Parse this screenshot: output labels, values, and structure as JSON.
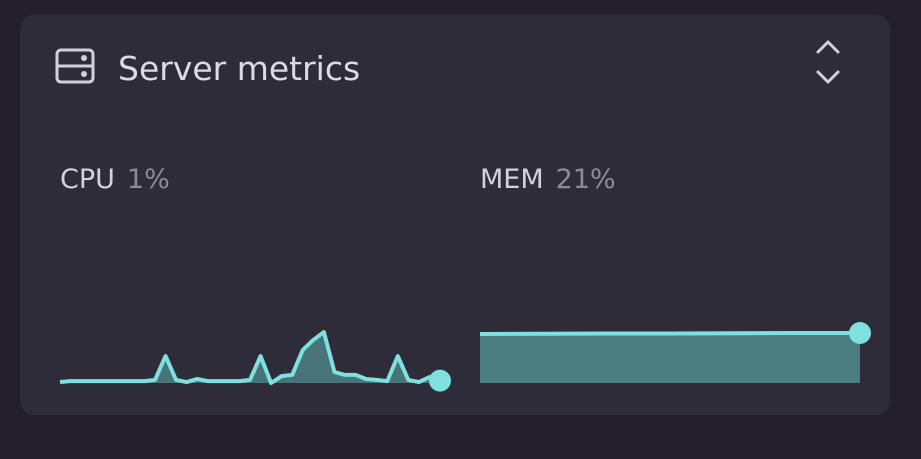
{
  "header": {
    "title": "Server metrics"
  },
  "metrics": [
    {
      "label": "CPU",
      "value": 1,
      "value_label": "1%",
      "type": "area",
      "color": "#7ee0df",
      "fill": "#4e8788",
      "ylim": [
        0,
        100
      ],
      "values": [
        0.4,
        0.8,
        0.8,
        0.8,
        0.8,
        0.8,
        0.8,
        0.8,
        0.8,
        1.3,
        11.3,
        1.3,
        0.4,
        1.7,
        0.8,
        0.8,
        0.8,
        0.8,
        1.3,
        11.3,
        0,
        2.9,
        3.4,
        13.9,
        18.1,
        21.4,
        4.6,
        3.4,
        3.4,
        1.7,
        1.3,
        0.8,
        11.3,
        1.3,
        0.4,
        2.5,
        1
      ]
    },
    {
      "label": "MEM",
      "value": 21,
      "value_label": "21%",
      "type": "area",
      "color": "#7ee0df",
      "fill": "#4e8788",
      "ylim": [
        0,
        100
      ],
      "values": [
        20.6,
        20.7,
        20.8,
        20.8,
        20.9,
        21,
        21
      ]
    }
  ]
}
